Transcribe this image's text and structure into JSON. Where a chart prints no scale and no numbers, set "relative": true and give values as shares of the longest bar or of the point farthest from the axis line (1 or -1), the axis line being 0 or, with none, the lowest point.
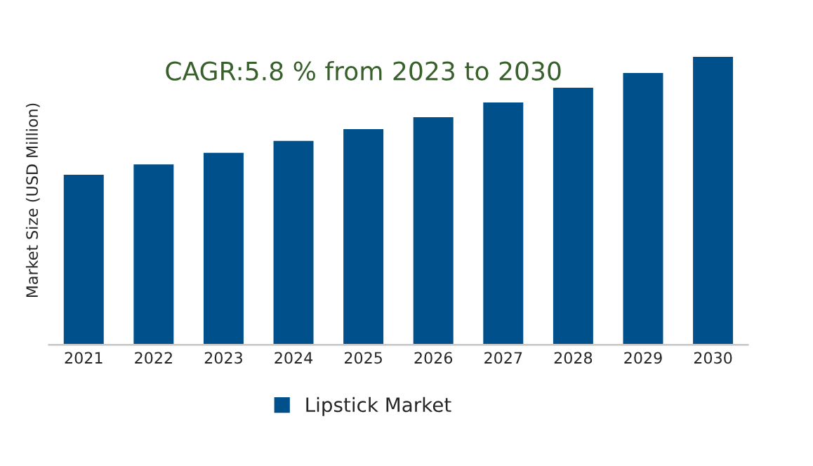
{
  "chart_data": {
    "type": "bar",
    "relative": true,
    "ylabel": "Market Size (USD Million)",
    "categories": [
      "2021",
      "2022",
      "2023",
      "2024",
      "2025",
      "2026",
      "2027",
      "2028",
      "2029",
      "2030"
    ],
    "series": [
      {
        "name": "Lipstick Market",
        "color": "#00508c",
        "values": [
          0.592,
          0.628,
          0.668,
          0.709,
          0.75,
          0.791,
          0.842,
          0.893,
          0.944,
          1.0
        ]
      }
    ],
    "annotations": [
      "CAGR:5.8 % from 2023 to 2030"
    ],
    "legend": "bottom",
    "grid": false
  }
}
